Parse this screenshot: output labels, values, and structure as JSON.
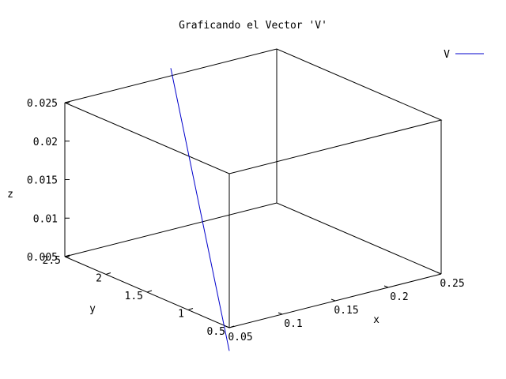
{
  "chart_data": {
    "type": "line",
    "title": "Graficando el Vector 'V'",
    "xlabel": "x",
    "ylabel": "y",
    "zlabel": "z",
    "xlim": [
      0.05,
      0.25
    ],
    "ylim": [
      0.5,
      2.5
    ],
    "zlim": [
      0.005,
      0.025
    ],
    "xticks": [
      "0.05",
      "0.1",
      "0.15",
      "0.2",
      "0.25"
    ],
    "yticks": [
      "0.5",
      "1",
      "1.5",
      "2",
      "2.5"
    ],
    "zticks": [
      "0.005",
      "0.01",
      "0.015",
      "0.02",
      "0.025"
    ],
    "legend_position": "top-right",
    "series": [
      {
        "name": "V",
        "color": "#0000cc",
        "points": [
          {
            "x": 0.05,
            "y": 0.5,
            "z": 0.002
          },
          {
            "x": 0.15,
            "y": 2.5,
            "z": 0.026
          }
        ]
      }
    ]
  }
}
